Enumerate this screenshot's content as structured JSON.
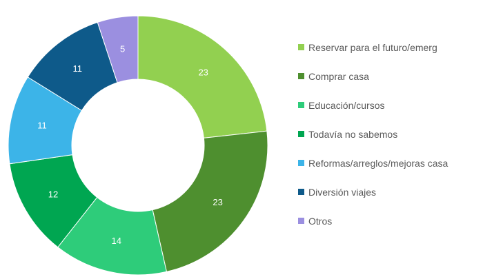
{
  "chart_data": {
    "type": "pie",
    "style": "donut",
    "title": "",
    "categories": [
      "Reservar para el futuro/emerg",
      "Comprar casa",
      "Educación/cursos",
      "Todavía no sabemos",
      "Reformas/arreglos/mejoras casa",
      "Diversión viajes",
      "Otros"
    ],
    "values": [
      23,
      23,
      14,
      12,
      11,
      11,
      5
    ],
    "colors": [
      "#92D050",
      "#4E8F2F",
      "#2ECC7A",
      "#00A651",
      "#3CB4E8",
      "#0E5A8A",
      "#9B8FE0"
    ],
    "data_labels": [
      "23",
      "23",
      "14",
      "12",
      "11",
      "11",
      "5"
    ],
    "legend_position": "right",
    "start_angle": "top",
    "direction": "clockwise"
  }
}
